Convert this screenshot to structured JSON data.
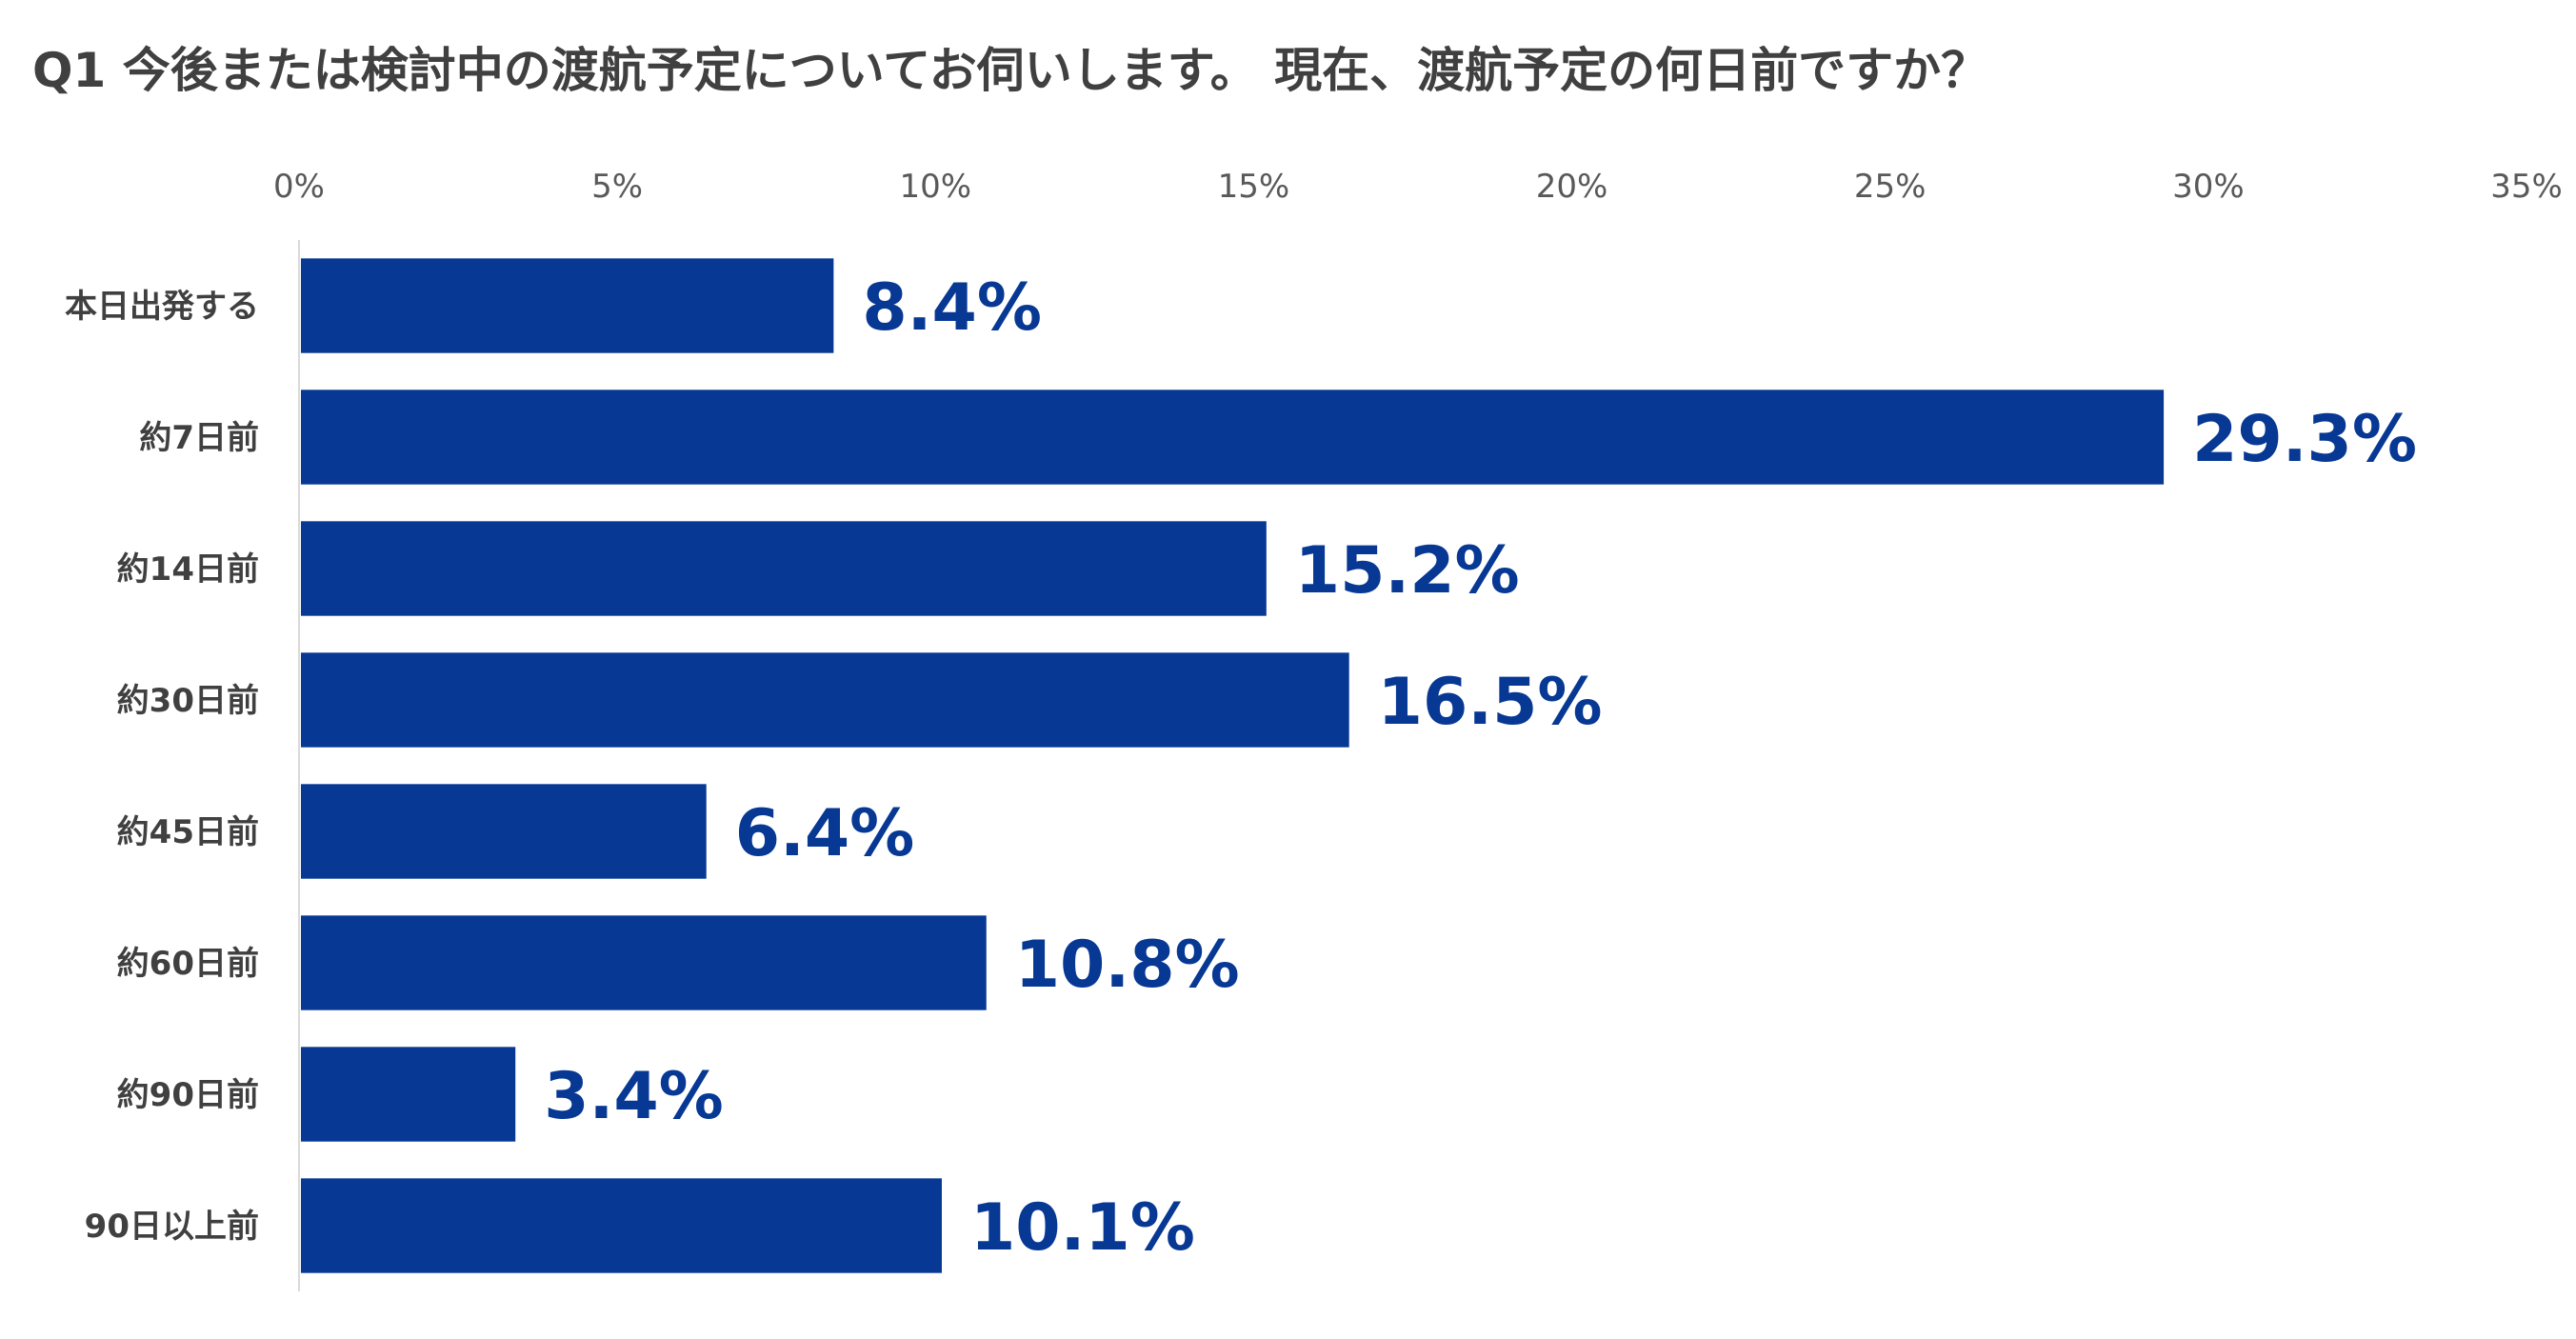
{
  "chart_data": {
    "type": "bar",
    "orientation": "horizontal",
    "title": "Q1 今後または検討中の渡航予定についてお伺いします。 現在、渡航予定の何日前ですか？",
    "categories": [
      "本日出発する",
      "約7日前",
      "約14日前",
      "約30日前",
      "約45日前",
      "約60日前",
      "約90日前",
      "90日以上前"
    ],
    "values": [
      8.4,
      29.3,
      15.2,
      16.5,
      6.4,
      10.8,
      3.4,
      10.1
    ],
    "data_labels": [
      "8.4%",
      "29.3%",
      "15.2%",
      "16.5%",
      "6.4%",
      "10.8%",
      "3.4%",
      "10.1%"
    ],
    "xlim": [
      0,
      35
    ],
    "xticks": [
      0,
      5,
      10,
      15,
      20,
      25,
      30,
      35
    ],
    "xtick_labels": [
      "0%",
      "5%",
      "10%",
      "15%",
      "20%",
      "25%",
      "30%",
      "35%"
    ],
    "axis_position": "top",
    "grid": false,
    "legend": "none",
    "bar_color": "#063894",
    "label_color": "#063894"
  }
}
